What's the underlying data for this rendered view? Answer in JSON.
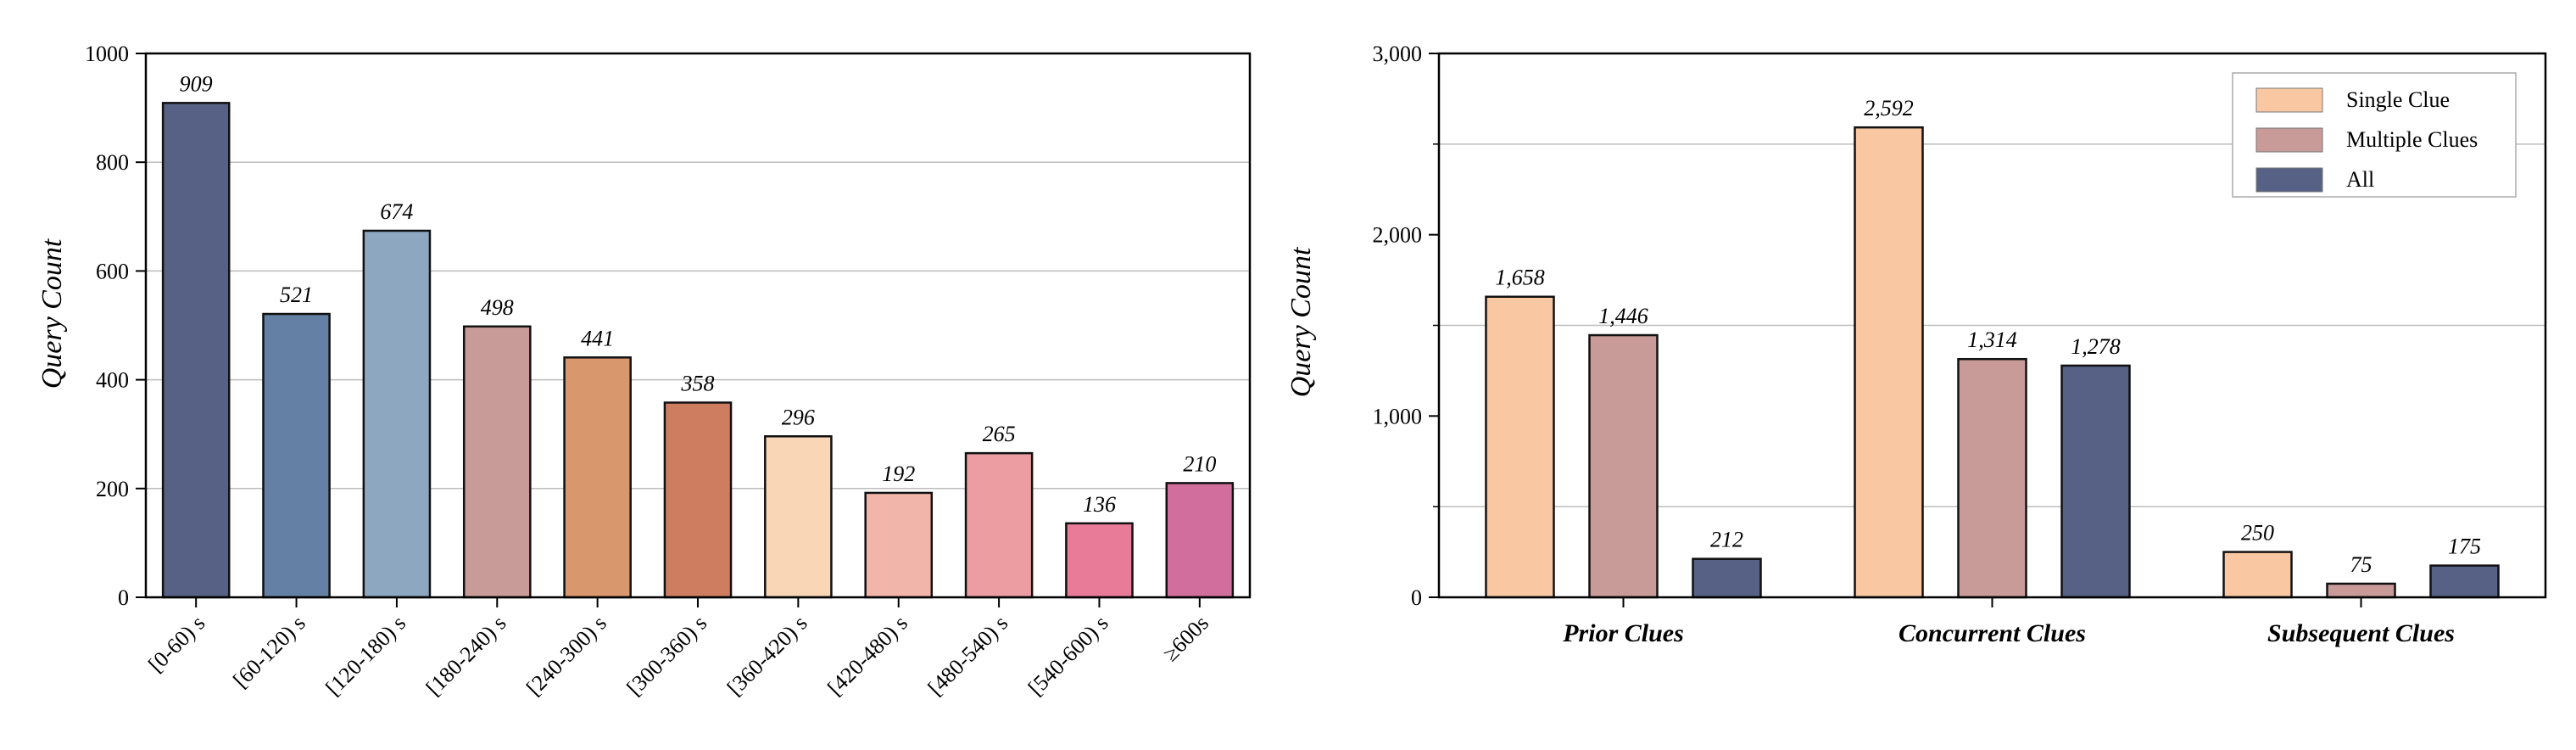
{
  "chart_data": [
    {
      "type": "bar",
      "ylabel": "Query Count",
      "xlabel": "",
      "ylim": [
        0,
        1000
      ],
      "yticks": [
        0,
        200,
        400,
        600,
        800,
        1000
      ],
      "ytick_labels": [
        "0",
        "200",
        "400",
        "600",
        "800",
        "1000"
      ],
      "grid": "horizontal",
      "categories": [
        "[0-60) s",
        "[60-120) s",
        "[120-180) s",
        "[180-240) s",
        "[240-300) s",
        "[300-360) s",
        "[360-420) s",
        "[420-480) s",
        "[480-540) s",
        "[540-600) s",
        "≥600s"
      ],
      "values": [
        909,
        521,
        674,
        498,
        441,
        358,
        296,
        192,
        265,
        136,
        210
      ],
      "value_labels": [
        "909",
        "521",
        "674",
        "498",
        "441",
        "358",
        "296",
        "192",
        "265",
        "136",
        "210"
      ],
      "colors": [
        "#566185",
        "#6580a5",
        "#8ea7c1",
        "#c89a98",
        "#d9976d",
        "#ce7d60",
        "#f9d6b6",
        "#f2b5a9",
        "#ec9da2",
        "#e87b98",
        "#d26e9e"
      ]
    },
    {
      "type": "bar",
      "ylabel": "Query Count",
      "xlabel": "",
      "ylim": [
        0,
        3000
      ],
      "yticks": [
        0,
        1000,
        2000,
        3000
      ],
      "ytick_labels": [
        "0",
        "1,000",
        "2,000",
        "3,000"
      ],
      "grid": "horizontal",
      "legend_position": "top-right",
      "categories": [
        "Prior Clues",
        "Concurrent Clues",
        "Subsequent Clues"
      ],
      "series": [
        {
          "name": "Single Clue",
          "values": [
            1658,
            2592,
            250
          ],
          "value_labels": [
            "1,658",
            "2,592",
            "250"
          ],
          "color": "#f9c8a3"
        },
        {
          "name": "Multiple Clues",
          "values": [
            1446,
            1314,
            75
          ],
          "value_labels": [
            "1,446",
            "1,314",
            "75"
          ],
          "color": "#c89a98"
        },
        {
          "name": "All",
          "values": [
            212,
            1278,
            175
          ],
          "value_labels": [
            "212",
            "1,278",
            "175"
          ],
          "color": "#566185"
        }
      ]
    }
  ]
}
